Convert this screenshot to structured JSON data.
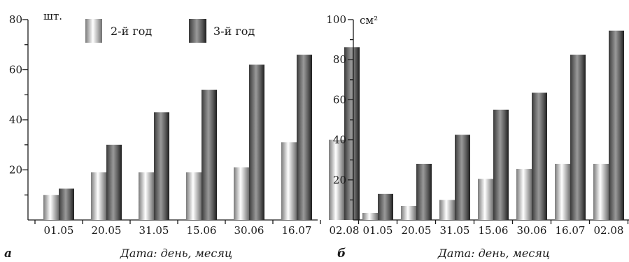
{
  "chart_data": [
    {
      "type": "bar",
      "panel_label": "а",
      "unit_label": "шт.",
      "xlabel": "Дата: день, месяц",
      "ylim": [
        0,
        80
      ],
      "yticks": [
        20,
        40,
        60,
        80
      ],
      "categories": [
        "01.05",
        "20.05",
        "31.05",
        "15.06",
        "30.06",
        "16.07",
        "02.08"
      ],
      "series": [
        {
          "name": "2-й год",
          "values": [
            10,
            19,
            19,
            19,
            21,
            31,
            32
          ]
        },
        {
          "name": "3-й год",
          "values": [
            12.5,
            30,
            43,
            52,
            62,
            66,
            69
          ]
        }
      ],
      "legend": "top"
    },
    {
      "type": "bar",
      "panel_label": "б",
      "unit_label": "см²",
      "xlabel": "Дата: день, месяц",
      "ylim": [
        0,
        100
      ],
      "yticks": [
        20,
        40,
        60,
        80,
        100
      ],
      "categories": [
        "01.05",
        "20.05",
        "31.05",
        "15.06",
        "30.06",
        "16.07",
        "02.08"
      ],
      "series": [
        {
          "name": "2-й год",
          "values": [
            3.5,
            7,
            10,
            20.5,
            25.5,
            28,
            28
          ]
        },
        {
          "name": "3-й год",
          "values": [
            13,
            28,
            42.5,
            55,
            63.5,
            82.5,
            94.5
          ]
        }
      ]
    }
  ],
  "colors": {
    "series_light": [
      "#7a7a7a",
      "#ffffff",
      "#b0b0b0",
      "#6e6e6e"
    ],
    "series_dark": [
      "#3a3a3a",
      "#9a9a9a",
      "#5a5a5a",
      "#1e1e1e"
    ],
    "axis": "#1a1a1a"
  }
}
